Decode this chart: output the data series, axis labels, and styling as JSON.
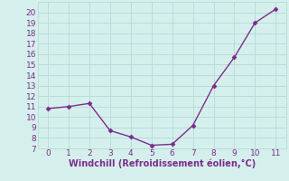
{
  "x": [
    0,
    1,
    2,
    3,
    4,
    5,
    6,
    7,
    8,
    9,
    10,
    11
  ],
  "y": [
    10.8,
    11.0,
    11.3,
    8.7,
    8.1,
    7.3,
    7.4,
    9.2,
    13.0,
    15.7,
    19.0,
    20.3
  ],
  "line_color": "#7b2d8b",
  "marker": "D",
  "marker_size": 2.5,
  "line_width": 1.0,
  "background_color": "#d5f0ec",
  "grid_color": "#b8ddd9",
  "xlabel": "Windchill (Refroidissement éolien,°C)",
  "xlabel_color": "#7b2d8b",
  "xlabel_fontsize": 7,
  "tick_color": "#7b2d8b",
  "tick_fontsize": 6.5,
  "xlim": [
    -0.5,
    11.5
  ],
  "ylim": [
    7,
    21
  ],
  "yticks": [
    7,
    8,
    9,
    10,
    11,
    12,
    13,
    14,
    15,
    16,
    17,
    18,
    19,
    20
  ],
  "xticks": [
    0,
    1,
    2,
    3,
    4,
    5,
    6,
    7,
    8,
    9,
    10,
    11
  ]
}
